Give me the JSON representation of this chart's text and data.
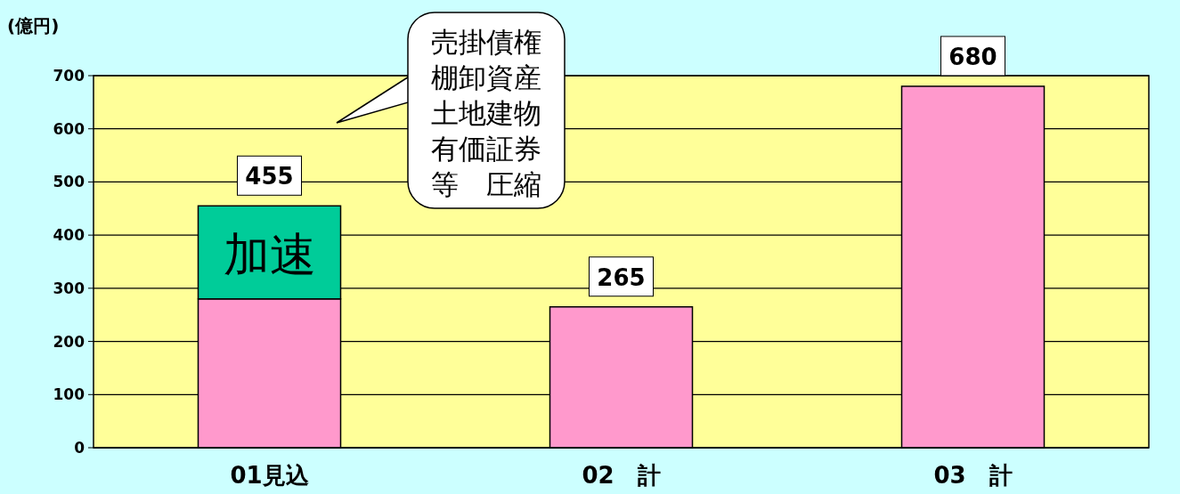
{
  "chart_data": {
    "type": "bar",
    "ylabel": "(億円)",
    "categories": [
      "01見込",
      "02　計",
      "03　計"
    ],
    "stacked": true,
    "series": [
      {
        "color": "#ff99cc",
        "values": [
          280,
          265,
          680
        ]
      },
      {
        "name": "加速",
        "color": "#00cc99",
        "values": [
          175,
          null,
          null
        ]
      }
    ],
    "totals": [
      "455",
      "265",
      "680"
    ],
    "ylim": [
      0,
      700
    ],
    "yticks": [
      0,
      100,
      200,
      300,
      400,
      500,
      600,
      700
    ],
    "grid": "y",
    "annotations": [
      "売掛債権",
      "棚卸資産",
      "土地建物",
      "有価証券",
      "等　圧縮"
    ]
  }
}
